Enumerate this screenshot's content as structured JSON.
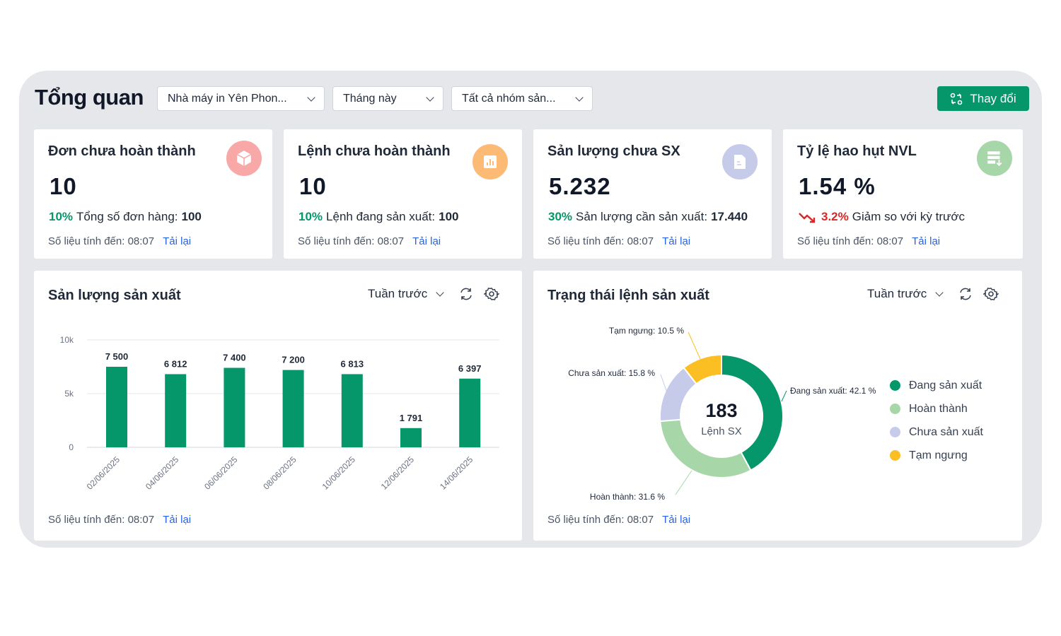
{
  "header": {
    "title": "Tổng quan",
    "filters": [
      {
        "value": "Nhà máy in Yên Phon..."
      },
      {
        "value": "Tháng này"
      },
      {
        "value": "Tất cả nhóm sản..."
      }
    ],
    "change_button": "Thay đổi",
    "accent": "#059669"
  },
  "cards": [
    {
      "title": "Đơn chưa hoàn thành",
      "value": "10",
      "pct": "10%",
      "pct_color": "green",
      "sub_label": "Tổng số đơn hàng:",
      "sub_value": "100",
      "icon": "box-icon",
      "icon_color": "#f9a8a8",
      "footer": "Số liệu tính đến: 08:07",
      "reload": "Tải lại"
    },
    {
      "title": "Lệnh chưa hoàn thành",
      "value": "10",
      "pct": "10%",
      "pct_color": "green",
      "sub_label": "Lệnh đang sản xuất:",
      "sub_value": "100",
      "icon": "bar-chart-icon",
      "icon_color": "#fdba74",
      "footer": "Số liệu tính đến: 08:07",
      "reload": "Tải lại"
    },
    {
      "title": "Sản lượng chưa SX",
      "value": "5.232",
      "pct": "30%",
      "pct_color": "green",
      "sub_label": "Sản lượng cần sản xuất:",
      "sub_value": "17.440",
      "icon": "document-icon",
      "icon_color": "#c7cbea",
      "footer": "Số liệu tính đến: 08:07",
      "reload": "Tải lại"
    },
    {
      "title": "Tỷ lệ hao hụt NVL",
      "value": "1.54 %",
      "pct": "3.2%",
      "pct_color": "red",
      "sub_label": "Giảm so với kỳ trước",
      "sub_value": "",
      "icon": "list-download-icon",
      "icon_color": "#a7d7a9",
      "trend": "trend-down-icon",
      "footer": "Số liệu tính đến: 08:07",
      "reload": "Tải lại"
    }
  ],
  "production": {
    "title": "Sản lượng sản xuất",
    "period": "Tuần trước",
    "footer": "Số liệu tính đến: 08:07",
    "reload": "Tải lại"
  },
  "status": {
    "title": "Trạng thái lệnh sản xuất",
    "period": "Tuần trước",
    "center_value": "183",
    "center_label": "Lệnh SX",
    "footer": "Số liệu tính đến: 08:07",
    "reload": "Tải lại"
  },
  "chart_data": [
    {
      "type": "bar",
      "categories": [
        "02/06/2025",
        "04/06/2025",
        "06/06/2025",
        "08/06/2025",
        "10/06/2025",
        "12/06/2025",
        "14/06/2025"
      ],
      "values": [
        7500,
        6812,
        7400,
        7200,
        6813,
        1791,
        6397
      ],
      "data_labels": [
        "7 500",
        "6 812",
        "7 400",
        "7 200",
        "6 813",
        "1 791",
        "6 397"
      ],
      "ylim": [
        0,
        10000
      ],
      "yticks": [
        "0",
        "5k",
        "10k"
      ],
      "ytick_values": [
        0,
        5000,
        10000
      ],
      "grid": true,
      "color": "#059669"
    },
    {
      "type": "pie",
      "donut": true,
      "slices": [
        {
          "name": "Đang sản xuất",
          "value": 42.1,
          "label": "Đang sản xuất: 42.1 %",
          "color": "#059669"
        },
        {
          "name": "Hoàn thành",
          "value": 31.6,
          "label": "Hoàn thành: 31.6 %",
          "color": "#a7d7a9"
        },
        {
          "name": "Chưa sản xuất",
          "value": 15.8,
          "label": "Chưa sản xuất: 15.8 %",
          "color": "#c7cbea"
        },
        {
          "name": "Tạm ngưng",
          "value": 10.5,
          "label": "Tạm ngưng: 10.5 %",
          "color": "#fbbf24"
        }
      ],
      "legend": "right"
    }
  ]
}
